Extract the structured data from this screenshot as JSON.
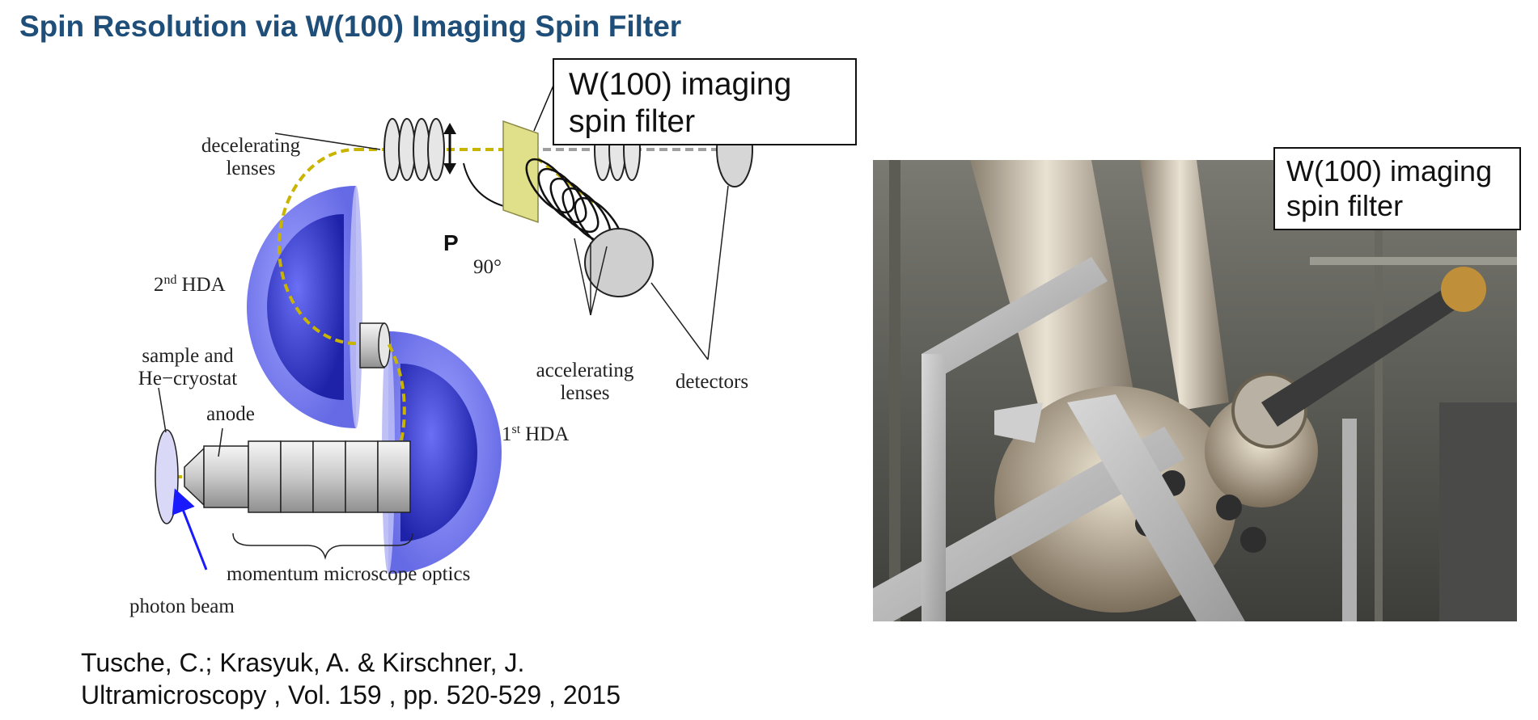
{
  "title": "Spin Resolution via W(100) Imaging Spin Filter",
  "diagram": {
    "labels": {
      "decelerating_lenses_line1": "decelerating",
      "decelerating_lenses_line2": "lenses",
      "second_hda_num": "2",
      "second_hda_sup": "nd",
      "second_hda_text": "HDA",
      "sample_line1": "sample and",
      "sample_line2": "He−cryostat",
      "anode": "anode",
      "first_hda_num": "1",
      "first_hda_sup": "st",
      "first_hda_text": "HDA",
      "polarization": "P",
      "angle": "90°",
      "accelerating_lenses_line1": "accelerating",
      "accelerating_lenses_line2": "lenses",
      "detectors": "detectors",
      "momentum_optics": "momentum microscope optics",
      "photon_beam": "photon beam"
    },
    "callout": {
      "line1": "W(100) imaging",
      "line2": "spin filter"
    },
    "colors": {
      "hemisphere": "#4a4fe0",
      "beam": "#c9b400",
      "spin_filter_crystal": "#e0df8a",
      "title": "#1f4e79",
      "photon_beam_arrow": "#1a1aff"
    }
  },
  "photo": {
    "callout": {
      "line1": "W(100) imaging",
      "line2": "spin filter"
    }
  },
  "citation": {
    "line1": "Tusche, C.; Krasyuk, A. & Kirschner, J.",
    "line2": "Ultramicroscopy , Vol. 159 , pp. 520-529 , 2015"
  }
}
